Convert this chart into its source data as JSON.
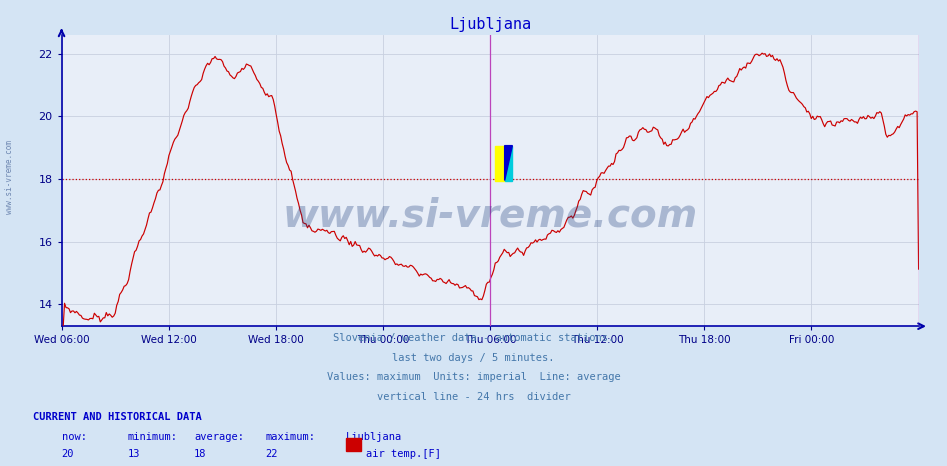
{
  "title": "Ljubljana",
  "title_color": "#0000cc",
  "bg_color": "#d4e4f4",
  "plot_bg_color": "#e8eef8",
  "grid_color": "#c8d0e0",
  "line_color": "#cc0000",
  "avg_line_color": "#cc0000",
  "avg_value": 18,
  "vline_color": "#bb44bb",
  "tick_color": "#000088",
  "ylim_min": 13.3,
  "ylim_max": 22.6,
  "yticks": [
    14,
    16,
    18,
    20,
    22
  ],
  "x_tick_hours": [
    0,
    6,
    12,
    18,
    24,
    30,
    36,
    42
  ],
  "x_tick_labels": [
    "Wed 06:00",
    "Wed 12:00",
    "Wed 18:00",
    "Thu 00:00",
    "Thu 06:00",
    "Thu 12:00",
    "Thu 18:00",
    "Fri 00:00"
  ],
  "total_hours": 48,
  "watermark_text": "www.si-vreme.com",
  "watermark_color": "#1a3a7a",
  "watermark_alpha": 0.3,
  "side_text": "www.si-vreme.com",
  "side_color": "#1a3a7a",
  "footer_lines": [
    "Slovenia / weather data - automatic stations.",
    "last two days / 5 minutes.",
    "Values: maximum  Units: imperial  Line: average",
    "vertical line - 24 hrs  divider"
  ],
  "footer_color": "#4477aa",
  "bottom_title": "CURRENT AND HISTORICAL DATA",
  "bottom_headers": [
    "now:",
    "minimum:",
    "average:",
    "maximum:",
    "Ljubljana"
  ],
  "bottom_values": [
    "20",
    "13",
    "18",
    "22"
  ],
  "bottom_legend_label": "air temp.[F]",
  "bottom_color": "#0000cc",
  "legend_box_color": "#cc0000"
}
